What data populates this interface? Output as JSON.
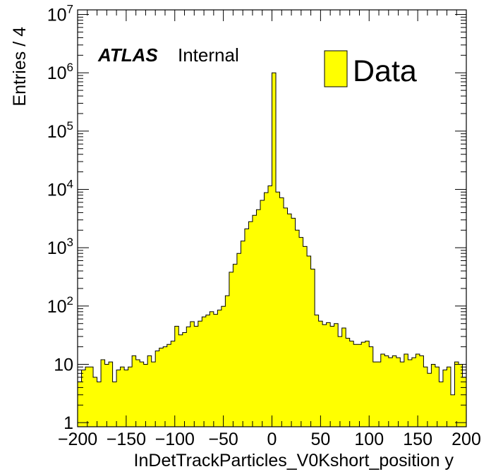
{
  "chart_data": {
    "type": "bar",
    "style": "histogram-step",
    "ylabel": "Entries / 4",
    "xlabel": "InDetTrackParticles_V0Kshort_position y",
    "experiment_label": "ATLAS",
    "status_label": "Internal",
    "legend": {
      "label": "Data",
      "placement": "top-right"
    },
    "xlim": [
      -200,
      200
    ],
    "ylim": [
      0.85,
      12000000
    ],
    "y_scale": "log",
    "bin_width": 4,
    "x_ticks": [
      "−200",
      "−150",
      "−100",
      "−50",
      "0",
      "50",
      "100",
      "150",
      "200"
    ],
    "y_tick_labels": [
      {
        "value": 1,
        "label": "1"
      },
      {
        "value": 10,
        "label": "10"
      },
      {
        "value": 100,
        "base": "10",
        "exp": "2"
      },
      {
        "value": 1000,
        "base": "10",
        "exp": "3"
      },
      {
        "value": 10000,
        "base": "10",
        "exp": "4"
      },
      {
        "value": 100000,
        "base": "10",
        "exp": "5"
      },
      {
        "value": 1000000,
        "base": "10",
        "exp": "6"
      },
      {
        "value": 10000000,
        "base": "10",
        "exp": "7"
      }
    ],
    "fill_color": "#ffff00",
    "line_color": "#000000",
    "series": [
      {
        "name": "Data",
        "bin_low_edges": [
          -200,
          -196,
          -192,
          -188,
          -184,
          -180,
          -176,
          -172,
          -168,
          -164,
          -160,
          -156,
          -152,
          -148,
          -144,
          -140,
          -136,
          -132,
          -128,
          -124,
          -120,
          -116,
          -112,
          -108,
          -104,
          -100,
          -96,
          -92,
          -88,
          -84,
          -80,
          -76,
          -72,
          -68,
          -64,
          -60,
          -56,
          -52,
          -48,
          -44,
          -40,
          -36,
          -32,
          -28,
          -24,
          -20,
          -16,
          -12,
          -8,
          -4,
          0,
          4,
          8,
          12,
          16,
          20,
          24,
          28,
          32,
          36,
          40,
          44,
          48,
          52,
          56,
          60,
          64,
          68,
          72,
          76,
          80,
          84,
          88,
          96,
          92,
          100,
          104,
          108,
          112,
          116,
          120,
          124,
          128,
          132,
          136,
          140,
          144,
          148,
          152,
          156,
          160,
          164,
          168,
          172,
          176,
          180,
          184,
          188,
          192,
          196
        ],
        "values": [
          5,
          8,
          9,
          9,
          6,
          5,
          12,
          10,
          11,
          5,
          8,
          9,
          8,
          9,
          14,
          12,
          11,
          10,
          14,
          11,
          17,
          19,
          20,
          22,
          25,
          45,
          32,
          35,
          44,
          54,
          45,
          55,
          65,
          70,
          80,
          72,
          85,
          99,
          150,
          380,
          520,
          800,
          1300,
          2100,
          2800,
          3600,
          4500,
          6500,
          8800,
          11500,
          1000000,
          9000,
          7200,
          4800,
          3800,
          3200,
          2000,
          1500,
          1050,
          720,
          430,
          70,
          55,
          48,
          52,
          45,
          50,
          30,
          42,
          28,
          25,
          22,
          22,
          25,
          24,
          20,
          11,
          11,
          15,
          14,
          13,
          14,
          13,
          11,
          15,
          12,
          13,
          15,
          14,
          9,
          7,
          10,
          9,
          5,
          8,
          9,
          3,
          11,
          10,
          6
        ]
      }
    ]
  }
}
